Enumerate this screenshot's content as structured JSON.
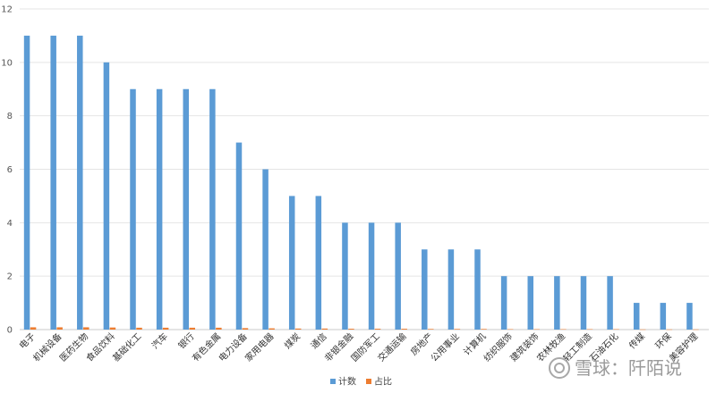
{
  "chart_data": {
    "type": "bar",
    "title": "",
    "xlabel": "",
    "ylabel": "",
    "ylim": [
      0,
      12
    ],
    "yticks": [
      0,
      2,
      4,
      6,
      8,
      10,
      12
    ],
    "grid": true,
    "legend_position": "bottom",
    "categories": [
      "电子",
      "机械设备",
      "医药生物",
      "食品饮料",
      "基础化工",
      "汽车",
      "银行",
      "有色金属",
      "电力设备",
      "家用电器",
      "煤炭",
      "通信",
      "非银金融",
      "国防军工",
      "交通运输",
      "房地产",
      "公用事业",
      "计算机",
      "纺织服饰",
      "建筑装饰",
      "农林牧渔",
      "轻工制造",
      "石油石化",
      "传媒",
      "环保",
      "美容护理"
    ],
    "series": [
      {
        "name": "计数",
        "color": "#5b9bd5",
        "values": [
          11,
          11,
          11,
          10,
          9,
          9,
          9,
          9,
          7,
          6,
          5,
          5,
          4,
          4,
          4,
          3,
          3,
          3,
          2,
          2,
          2,
          2,
          2,
          1,
          1,
          1
        ]
      },
      {
        "name": "占比",
        "color": "#ed7d31",
        "values": [
          0.0859,
          0.0859,
          0.0859,
          0.0781,
          0.0703,
          0.0703,
          0.0703,
          0.0703,
          0.0547,
          0.0469,
          0.0391,
          0.0391,
          0.0313,
          0.0313,
          0.0313,
          0.0234,
          0.0234,
          0.0234,
          0.0156,
          0.0156,
          0.0156,
          0.0156,
          0.0156,
          0.0078,
          0.0078,
          0.0078
        ]
      }
    ]
  },
  "watermark": {
    "text": "雪球：阡陌说"
  }
}
